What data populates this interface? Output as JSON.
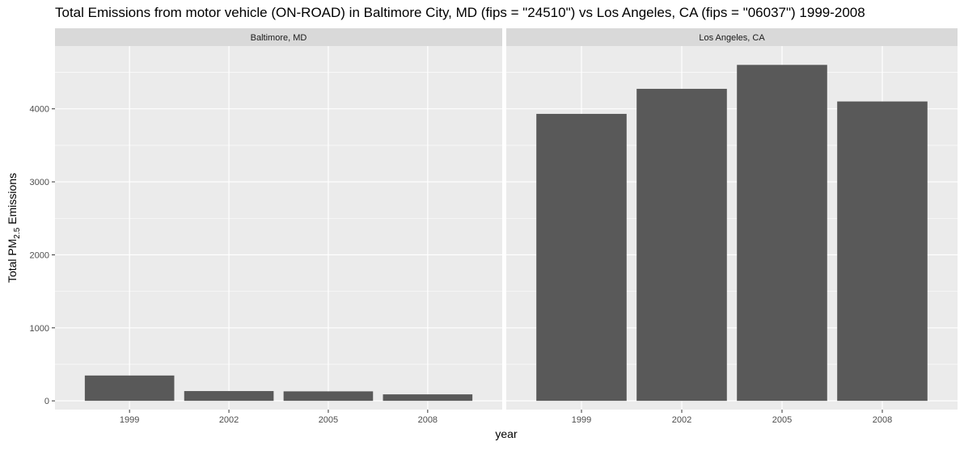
{
  "title": "Total Emissions from motor vehicle (ON-ROAD) in Baltimore City, MD (fips = \"24510\") vs Los Angeles, CA (fips = \"06037\")  1999-2008",
  "colors": {
    "panel_bg": "#ebebeb",
    "strip_bg": "#d9d9d9",
    "grid": "#ffffff",
    "bar": "#595959",
    "tick_text": "#4d4d4d"
  },
  "chart_data": {
    "type": "bar",
    "xlabel": "year",
    "ylabel": {
      "prefix": "Total PM",
      "subscript": "2.5",
      "suffix": " Emissions"
    },
    "ylim": [
      -120,
      4860
    ],
    "yticks": [
      0,
      1000,
      2000,
      3000,
      4000
    ],
    "grid": true,
    "categories": [
      "1999",
      "2002",
      "2005",
      "2008"
    ],
    "facets": [
      {
        "label": "Baltimore, MD",
        "values": [
          347,
          134,
          130,
          89
        ]
      },
      {
        "label": "Los Angeles, CA",
        "values": [
          3931,
          4274,
          4602,
          4101
        ]
      }
    ]
  }
}
